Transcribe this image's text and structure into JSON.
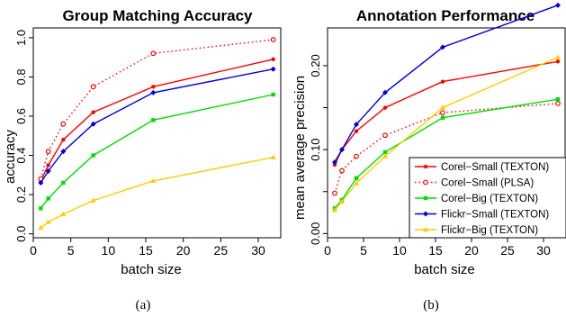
{
  "chart_data": [
    {
      "type": "line",
      "title": "Group Matching Accuracy",
      "xlabel": "batch size",
      "ylabel": "accuracy",
      "xlim": [
        0,
        33
      ],
      "ylim": [
        -0.02,
        1.05
      ],
      "xticks": [
        0,
        5,
        10,
        15,
        20,
        25,
        30
      ],
      "xtick_labels": [
        "0",
        "5",
        "10",
        "15",
        "20",
        "25",
        "30"
      ],
      "yticks": [
        0.0,
        0.2,
        0.4,
        0.6,
        0.8,
        1.0
      ],
      "ytick_labels": [
        "0.0",
        "0.2",
        "0.4",
        "0.6",
        "0.8",
        "1.0"
      ],
      "grid": false,
      "caption": "(a)",
      "x": [
        1,
        2,
        4,
        8,
        16,
        32
      ],
      "series": [
        {
          "color": "#ff0000",
          "dashed": false,
          "marker": "dot",
          "values": [
            0.27,
            0.35,
            0.48,
            0.62,
            0.75,
            0.89
          ]
        },
        {
          "color": "#ff0000",
          "dashed": true,
          "marker": "circle",
          "values": [
            0.28,
            0.42,
            0.56,
            0.75,
            0.92,
            0.99
          ]
        },
        {
          "color": "#00dd00",
          "dashed": false,
          "marker": "square",
          "values": [
            0.13,
            0.18,
            0.26,
            0.4,
            0.58,
            0.71
          ]
        },
        {
          "color": "#0000dd",
          "dashed": false,
          "marker": "diamond",
          "values": [
            0.26,
            0.32,
            0.42,
            0.56,
            0.72,
            0.84
          ]
        },
        {
          "color": "#ffcc00",
          "dashed": false,
          "marker": "triangle",
          "values": [
            0.03,
            0.06,
            0.1,
            0.17,
            0.27,
            0.39
          ]
        }
      ]
    },
    {
      "type": "line",
      "title": "Annotation Performance",
      "xlabel": "batch size",
      "ylabel": "mean average precision",
      "xlim": [
        0,
        33
      ],
      "ylim": [
        -0.005,
        0.245
      ],
      "xticks": [
        0,
        5,
        10,
        15,
        20,
        25,
        30
      ],
      "xtick_labels": [
        "0",
        "5",
        "10",
        "15",
        "20",
        "25",
        "30"
      ],
      "yticks": [
        0.0,
        0.05,
        0.1,
        0.15,
        0.2
      ],
      "ytick_labels": [
        "0.00",
        "",
        "0.10",
        "",
        "0.20"
      ],
      "grid": false,
      "legend_position": "bottom-right",
      "caption": "(b)",
      "x": [
        1,
        2,
        4,
        8,
        16,
        32
      ],
      "series": [
        {
          "name": "Corel−Small (TEXTON)",
          "color": "#ff0000",
          "dashed": false,
          "marker": "dot",
          "values": [
            0.082,
            0.1,
            0.122,
            0.15,
            0.181,
            0.205
          ]
        },
        {
          "name": "Corel−Small (PLSA)",
          "color": "#ff0000",
          "dashed": true,
          "marker": "circle",
          "values": [
            0.048,
            0.075,
            0.092,
            0.117,
            0.144,
            0.155
          ]
        },
        {
          "name": "Corel−Big (TEXTON)",
          "color": "#00dd00",
          "dashed": false,
          "marker": "square",
          "values": [
            0.03,
            0.04,
            0.066,
            0.097,
            0.138,
            0.16
          ]
        },
        {
          "name": "Flickr−Small (TEXTON)",
          "color": "#0000dd",
          "dashed": false,
          "marker": "diamond",
          "values": [
            0.085,
            0.1,
            0.13,
            0.168,
            0.222,
            0.272
          ]
        },
        {
          "name": "Flickr−Big (TEXTON)",
          "color": "#ffcc00",
          "dashed": false,
          "marker": "triangle",
          "values": [
            0.028,
            0.038,
            0.06,
            0.092,
            0.15,
            0.21
          ]
        }
      ]
    }
  ]
}
